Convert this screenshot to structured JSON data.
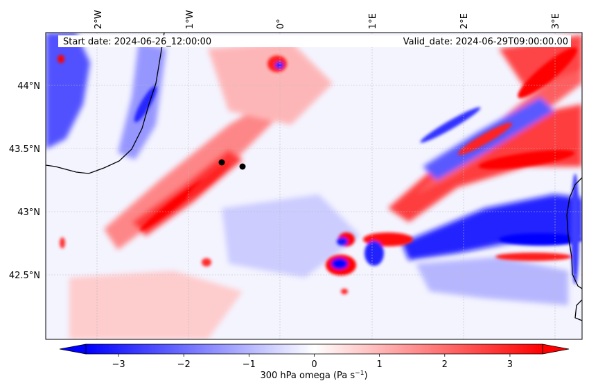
{
  "map": {
    "header_left": "Start date: 2024-06-26_12:00:00",
    "header_right": "Valid_date: 2024-06-29T09:00:00.00",
    "longitude_labels": [
      "2°W",
      "1°W",
      "0°",
      "1°E",
      "2°E",
      "3°E"
    ],
    "latitude_labels": [
      "44°N",
      "43.5°N",
      "43°N",
      "42.5°N"
    ]
  },
  "colorbar": {
    "label_prefix": "300 hPa omega (Pa s",
    "label_exponent": "−1",
    "label_suffix": ")",
    "tick_labels": [
      "−3",
      "−2",
      "−1",
      "0",
      "1",
      "2",
      "3"
    ],
    "range": [
      -3.5,
      3.5
    ],
    "colors": {
      "low": "#0000ff",
      "mid": "#ffffff",
      "high": "#ff0000"
    }
  },
  "colors": {
    "negative": "#0000ff",
    "positive": "#ff0000",
    "coastline": "#000000",
    "marker": "#000000"
  }
}
